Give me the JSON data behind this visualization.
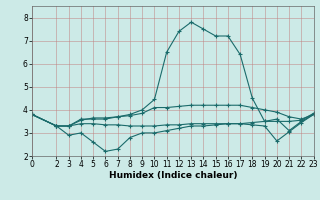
{
  "xlabel": "Humidex (Indice chaleur)",
  "bg_color": "#cceae7",
  "grid_color": "#aaaaaa",
  "line_color": "#1a6b6b",
  "xlim": [
    0,
    23
  ],
  "ylim": [
    2,
    8.5
  ],
  "yticks": [
    2,
    3,
    4,
    5,
    6,
    7,
    8
  ],
  "xticks": [
    0,
    2,
    3,
    4,
    5,
    6,
    7,
    8,
    9,
    10,
    11,
    12,
    13,
    14,
    15,
    16,
    17,
    18,
    19,
    20,
    21,
    22,
    23
  ],
  "line1_x": [
    0,
    2,
    3,
    4,
    5,
    6,
    7,
    8,
    9,
    10,
    11,
    12,
    13,
    14,
    15,
    16,
    17,
    18,
    19,
    20,
    21,
    22,
    23
  ],
  "line1_y": [
    3.8,
    3.3,
    2.9,
    3.0,
    2.6,
    2.2,
    2.3,
    2.8,
    3.0,
    3.0,
    3.1,
    3.2,
    3.3,
    3.3,
    3.35,
    3.4,
    3.4,
    3.45,
    3.5,
    3.5,
    3.5,
    3.55,
    3.85
  ],
  "line2_x": [
    0,
    2,
    3,
    4,
    5,
    6,
    7,
    8,
    9,
    10,
    11,
    12,
    13,
    14,
    15,
    16,
    17,
    18,
    19,
    20,
    21,
    22,
    23
  ],
  "line2_y": [
    3.8,
    3.3,
    3.3,
    3.6,
    3.6,
    3.6,
    3.7,
    3.8,
    4.0,
    4.45,
    6.5,
    7.4,
    7.8,
    7.5,
    7.2,
    7.2,
    6.4,
    4.5,
    3.5,
    3.6,
    3.1,
    3.5,
    3.8
  ],
  "line3_x": [
    0,
    2,
    3,
    4,
    5,
    6,
    7,
    8,
    9,
    10,
    11,
    12,
    13,
    14,
    15,
    16,
    17,
    18,
    19,
    20,
    21,
    22,
    23
  ],
  "line3_y": [
    3.8,
    3.3,
    3.3,
    3.55,
    3.65,
    3.65,
    3.7,
    3.75,
    3.85,
    4.1,
    4.1,
    4.15,
    4.2,
    4.2,
    4.2,
    4.2,
    4.2,
    4.1,
    4.0,
    3.9,
    3.7,
    3.6,
    3.8
  ],
  "line4_x": [
    0,
    2,
    3,
    4,
    5,
    6,
    7,
    8,
    9,
    10,
    11,
    12,
    13,
    14,
    15,
    16,
    17,
    18,
    19,
    20,
    21,
    22,
    23
  ],
  "line4_y": [
    3.8,
    3.3,
    3.3,
    3.4,
    3.4,
    3.35,
    3.35,
    3.3,
    3.3,
    3.3,
    3.35,
    3.35,
    3.4,
    3.4,
    3.4,
    3.4,
    3.4,
    3.35,
    3.3,
    2.65,
    3.05,
    3.45,
    3.8
  ],
  "tick_fontsize": 5.5,
  "xlabel_fontsize": 6.5,
  "grid_lw": 0.5,
  "line_lw": 0.8,
  "marker_size": 2.5
}
